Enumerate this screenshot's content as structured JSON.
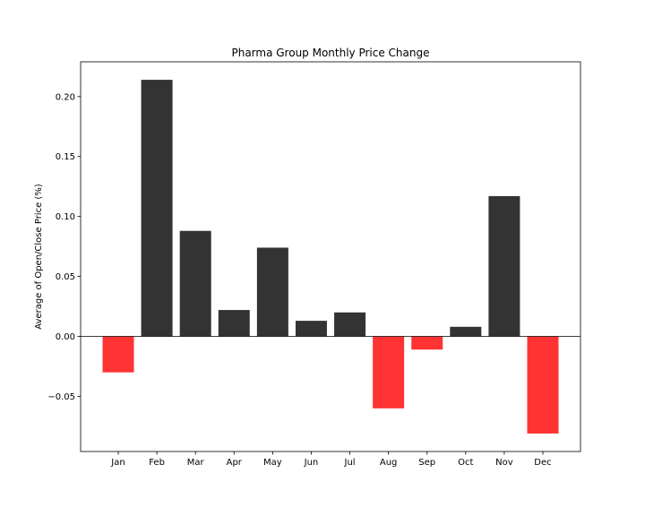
{
  "chart_data": {
    "type": "bar",
    "title": "Pharma Group Monthly Price Change",
    "xlabel": "",
    "ylabel": "Average of Open/Close Price (%)",
    "categories": [
      "Jan",
      "Feb",
      "Mar",
      "Apr",
      "May",
      "Jun",
      "Jul",
      "Aug",
      "Sep",
      "Oct",
      "Nov",
      "Dec"
    ],
    "values": [
      -0.03,
      0.214,
      0.088,
      0.022,
      0.074,
      0.013,
      0.02,
      -0.06,
      -0.011,
      0.008,
      0.117,
      -0.081
    ],
    "ylim": [
      -0.096,
      0.229
    ],
    "yticks": [
      -0.05,
      0.0,
      0.05,
      0.1,
      0.15,
      0.2
    ],
    "ytick_labels": [
      "−0.05",
      "0.00",
      "0.05",
      "0.10",
      "0.15",
      "0.20"
    ],
    "grid": false,
    "zero_line": true,
    "colors": {
      "positive": "#333333",
      "negative": "#ff3333",
      "axis": "#000000"
    }
  }
}
